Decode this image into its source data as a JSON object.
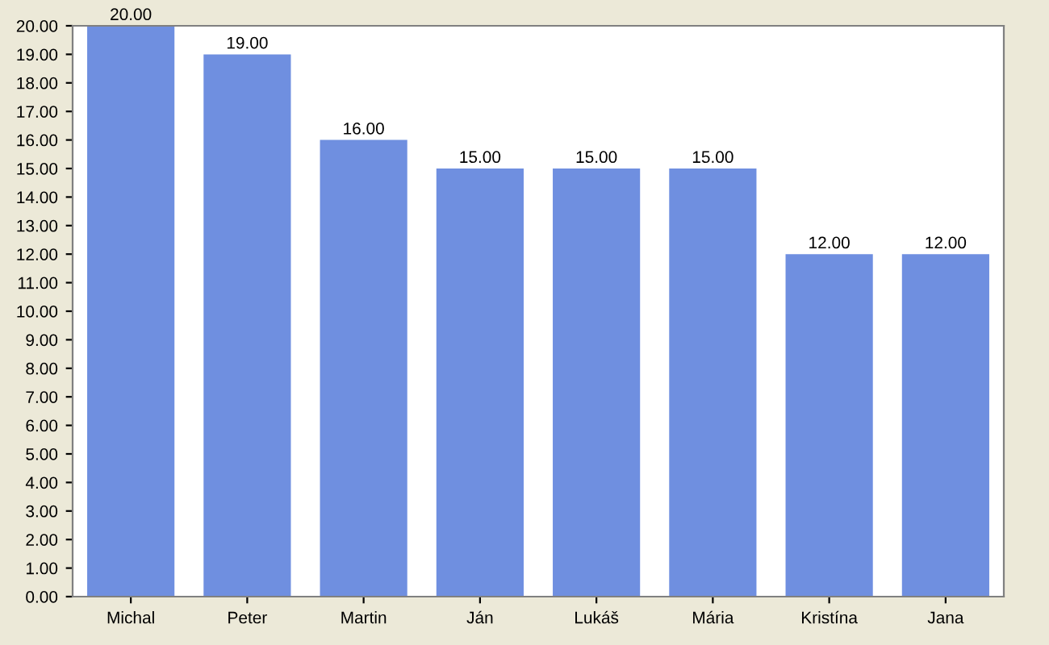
{
  "chart_data": {
    "type": "bar",
    "categories": [
      "Michal",
      "Peter",
      "Martin",
      "Ján",
      "Lukáš",
      "Mária",
      "Kristína",
      "Jana"
    ],
    "values": [
      20,
      19,
      16,
      15,
      15,
      15,
      12,
      12
    ],
    "value_labels": [
      "20.00",
      "19.00",
      "16.00",
      "15.00",
      "15.00",
      "15.00",
      "12.00",
      "12.00"
    ],
    "color": "#6f8fe0",
    "ylim": [
      0,
      20
    ],
    "yticks": [
      {
        "value": 0,
        "label": "0.00"
      },
      {
        "value": 1,
        "label": "1.00"
      },
      {
        "value": 2,
        "label": "2.00"
      },
      {
        "value": 3,
        "label": "3.00"
      },
      {
        "value": 4,
        "label": "4.00"
      },
      {
        "value": 5,
        "label": "5.00"
      },
      {
        "value": 6,
        "label": "6.00"
      },
      {
        "value": 7,
        "label": "7.00"
      },
      {
        "value": 8,
        "label": "8.00"
      },
      {
        "value": 9,
        "label": "9.00"
      },
      {
        "value": 10,
        "label": "10.00"
      },
      {
        "value": 11,
        "label": "11.00"
      },
      {
        "value": 12,
        "label": "12.00"
      },
      {
        "value": 13,
        "label": "13.00"
      },
      {
        "value": 14,
        "label": "14.00"
      },
      {
        "value": 15,
        "label": "15.00"
      },
      {
        "value": 16,
        "label": "16.00"
      },
      {
        "value": 17,
        "label": "17.00"
      },
      {
        "value": 18,
        "label": "18.00"
      },
      {
        "value": 19,
        "label": "19.00"
      },
      {
        "value": 20,
        "label": "20.00"
      }
    ],
    "grid": false,
    "legend": false
  }
}
